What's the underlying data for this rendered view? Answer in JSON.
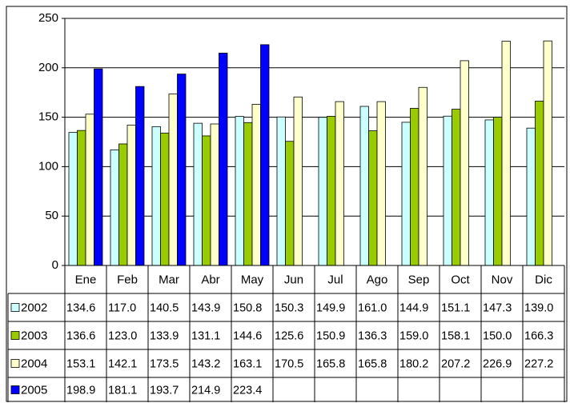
{
  "chart_data": {
    "type": "bar",
    "categories": [
      "Ene",
      "Feb",
      "Mar",
      "Abr",
      "May",
      "Jun",
      "Jul",
      "Ago",
      "Sep",
      "Oct",
      "Nov",
      "Dic"
    ],
    "series": [
      {
        "name": "2002",
        "color": "#ccffff",
        "values": [
          134.6,
          117.0,
          140.5,
          143.9,
          150.8,
          150.3,
          149.9,
          161.0,
          144.9,
          151.1,
          147.3,
          139.0
        ],
        "value_labels": [
          "134.6",
          "117.0",
          "140.5",
          "143.9",
          "150.8",
          "150.3",
          "149.9",
          "161.0",
          "144.9",
          "151.1",
          "147.3",
          "139.0"
        ]
      },
      {
        "name": "2003",
        "color": "#99cc00",
        "values": [
          136.6,
          123.0,
          133.9,
          131.1,
          144.6,
          125.6,
          150.9,
          136.3,
          159.0,
          158.1,
          150.0,
          166.3
        ],
        "value_labels": [
          "136.6",
          "123.0",
          "133.9",
          "131.1",
          "144.6",
          "125.6",
          "150.9",
          "136.3",
          "159.0",
          "158.1",
          "150.0",
          "166.3"
        ]
      },
      {
        "name": "2004",
        "color": "#ffffcc",
        "values": [
          153.1,
          142.1,
          173.5,
          143.2,
          163.1,
          170.5,
          165.8,
          165.8,
          180.2,
          207.2,
          226.9,
          227.2
        ],
        "value_labels": [
          "153.1",
          "142.1",
          "173.5",
          "143.2",
          "163.1",
          "170.5",
          "165.8",
          "165.8",
          "180.2",
          "207.2",
          "226.9",
          "227.2"
        ]
      },
      {
        "name": "2005",
        "color": "#0000ff",
        "values": [
          198.9,
          181.1,
          193.7,
          214.9,
          223.4,
          null,
          null,
          null,
          null,
          null,
          null,
          null
        ],
        "value_labels": [
          "198.9",
          "181.1",
          "193.7",
          "214.9",
          "223.4",
          null,
          null,
          null,
          null,
          null,
          null,
          null
        ]
      }
    ],
    "ylim": [
      0,
      250
    ],
    "yticks": [
      0,
      50,
      100,
      150,
      200,
      250
    ],
    "grid": true
  }
}
